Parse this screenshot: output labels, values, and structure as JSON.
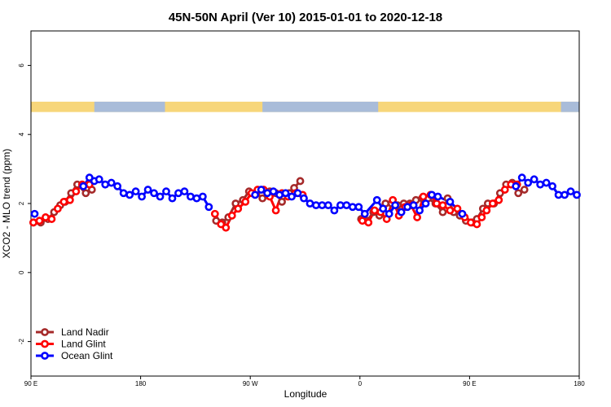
{
  "chart_data": {
    "type": "line",
    "title": "45N-50N April (Ver 10)   2015-01-01 to 2020-12-18",
    "xlabel": "Longitude",
    "ylabel": "XCO2 - MLO trend (ppm)",
    "xlim": [
      90,
      540
    ],
    "ylim": [
      -3,
      7
    ],
    "x_ticks": [
      {
        "value": 90,
        "label": "90 E"
      },
      {
        "value": 180,
        "label": "180"
      },
      {
        "value": 270,
        "label": "90 W"
      },
      {
        "value": 360,
        "label": "0"
      },
      {
        "value": 450,
        "label": "90 E"
      },
      {
        "value": 540,
        "label": "180"
      }
    ],
    "y_ticks": [
      {
        "value": -2,
        "label": "-2"
      },
      {
        "value": 0,
        "label": "0"
      },
      {
        "value": 2,
        "label": "2"
      },
      {
        "value": 4,
        "label": "4"
      },
      {
        "value": 6,
        "label": "6"
      }
    ],
    "map_strip": {
      "y_range": [
        4.65,
        4.95
      ],
      "land_color": "#f7d67a",
      "ocean_color": "#a9bcd9",
      "ocean_segments": [
        [
          142,
          200
        ],
        [
          280,
          375
        ],
        [
          525,
          540
        ]
      ]
    },
    "legend": {
      "position": "bottom-left"
    },
    "series": [
      {
        "name": "Land Nadir",
        "color": "#a52a2a",
        "points": [
          [
            92,
            1.45
          ],
          [
            98,
            1.45
          ],
          [
            104,
            1.55
          ],
          [
            109,
            1.75
          ],
          [
            114,
            1.95
          ],
          [
            118,
            2.05
          ],
          [
            123,
            2.3
          ],
          [
            128,
            2.55
          ],
          [
            135,
            2.3
          ],
          [
            140,
            2.4
          ],
          [
            242,
            1.5
          ],
          [
            247,
            1.45
          ],
          [
            252,
            1.6
          ],
          [
            258,
            2.0
          ],
          [
            264,
            2.1
          ],
          [
            269,
            2.35
          ],
          [
            275,
            2.3
          ],
          [
            280,
            2.15
          ],
          [
            286,
            2.35
          ],
          [
            291,
            2.3
          ],
          [
            296,
            2.05
          ],
          [
            302,
            2.3
          ],
          [
            306,
            2.45
          ],
          [
            311,
            2.65
          ],
          [
            361,
            1.55
          ],
          [
            366,
            1.5
          ],
          [
            371,
            1.75
          ],
          [
            376,
            1.65
          ],
          [
            381,
            2.0
          ],
          [
            386,
            2.0
          ],
          [
            391,
            1.95
          ],
          [
            396,
            2.0
          ],
          [
            401,
            2.0
          ],
          [
            406,
            2.1
          ],
          [
            411,
            2.15
          ],
          [
            416,
            2.15
          ],
          [
            422,
            2.0
          ],
          [
            428,
            1.75
          ],
          [
            432,
            2.15
          ],
          [
            437,
            1.75
          ],
          [
            442,
            1.65
          ],
          [
            447,
            1.5
          ],
          [
            452,
            1.45
          ],
          [
            456,
            1.55
          ],
          [
            461,
            1.85
          ],
          [
            465,
            2.0
          ],
          [
            470,
            2.0
          ],
          [
            475,
            2.3
          ],
          [
            480,
            2.55
          ],
          [
            485,
            2.6
          ],
          [
            490,
            2.3
          ],
          [
            495,
            2.4
          ]
        ]
      },
      {
        "name": "Land Glint",
        "color": "#ff0000",
        "points": [
          [
            92,
            1.45
          ],
          [
            97,
            1.5
          ],
          [
            102,
            1.6
          ],
          [
            107,
            1.55
          ],
          [
            112,
            1.85
          ],
          [
            117,
            2.05
          ],
          [
            122,
            2.1
          ],
          [
            127,
            2.35
          ],
          [
            132,
            2.55
          ],
          [
            138,
            2.55
          ],
          [
            241,
            1.7
          ],
          [
            246,
            1.4
          ],
          [
            250,
            1.3
          ],
          [
            255,
            1.65
          ],
          [
            260,
            1.85
          ],
          [
            266,
            2.05
          ],
          [
            271,
            2.3
          ],
          [
            276,
            2.4
          ],
          [
            281,
            2.4
          ],
          [
            286,
            2.2
          ],
          [
            291,
            1.8
          ],
          [
            296,
            2.3
          ],
          [
            301,
            2.2
          ],
          [
            307,
            2.3
          ],
          [
            313,
            2.25
          ],
          [
            362,
            1.5
          ],
          [
            367,
            1.45
          ],
          [
            372,
            1.8
          ],
          [
            377,
            1.75
          ],
          [
            382,
            1.55
          ],
          [
            387,
            2.1
          ],
          [
            392,
            1.65
          ],
          [
            397,
            1.9
          ],
          [
            402,
            1.95
          ],
          [
            407,
            1.6
          ],
          [
            412,
            2.2
          ],
          [
            418,
            2.25
          ],
          [
            423,
            2.0
          ],
          [
            428,
            1.95
          ],
          [
            434,
            1.8
          ],
          [
            440,
            1.85
          ],
          [
            446,
            1.6
          ],
          [
            451,
            1.45
          ],
          [
            456,
            1.4
          ],
          [
            460,
            1.6
          ],
          [
            464,
            1.8
          ],
          [
            469,
            2.0
          ],
          [
            474,
            2.1
          ],
          [
            479,
            2.4
          ],
          [
            484,
            2.55
          ],
          [
            489,
            2.55
          ]
        ]
      },
      {
        "name": "Ocean Glint",
        "color": "#0000ff",
        "points": [
          [
            93,
            1.7
          ],
          [
            133,
            2.5
          ],
          [
            138,
            2.75
          ],
          [
            142,
            2.65
          ],
          [
            146,
            2.7
          ],
          [
            151,
            2.55
          ],
          [
            156,
            2.6
          ],
          [
            161,
            2.5
          ],
          [
            166,
            2.3
          ],
          [
            171,
            2.25
          ],
          [
            176,
            2.35
          ],
          [
            181,
            2.2
          ],
          [
            186,
            2.4
          ],
          [
            191,
            2.3
          ],
          [
            196,
            2.2
          ],
          [
            201,
            2.35
          ],
          [
            206,
            2.15
          ],
          [
            211,
            2.3
          ],
          [
            216,
            2.35
          ],
          [
            221,
            2.2
          ],
          [
            226,
            2.15
          ],
          [
            231,
            2.2
          ],
          [
            236,
            1.9
          ],
          [
            274,
            2.25
          ],
          [
            279,
            2.4
          ],
          [
            284,
            2.3
          ],
          [
            289,
            2.35
          ],
          [
            294,
            2.25
          ],
          [
            299,
            2.3
          ],
          [
            304,
            2.2
          ],
          [
            309,
            2.3
          ],
          [
            314,
            2.15
          ],
          [
            319,
            2.0
          ],
          [
            324,
            1.95
          ],
          [
            329,
            1.95
          ],
          [
            334,
            1.95
          ],
          [
            339,
            1.8
          ],
          [
            344,
            1.95
          ],
          [
            349,
            1.95
          ],
          [
            354,
            1.9
          ],
          [
            359,
            1.9
          ],
          [
            364,
            1.7
          ],
          [
            374,
            2.1
          ],
          [
            379,
            1.85
          ],
          [
            384,
            1.7
          ],
          [
            389,
            1.95
          ],
          [
            394,
            1.75
          ],
          [
            399,
            1.9
          ],
          [
            404,
            1.95
          ],
          [
            409,
            1.8
          ],
          [
            414,
            2.0
          ],
          [
            419,
            2.25
          ],
          [
            424,
            2.2
          ],
          [
            434,
            2.05
          ],
          [
            444,
            1.7
          ],
          [
            488,
            2.5
          ],
          [
            493,
            2.75
          ],
          [
            498,
            2.6
          ],
          [
            503,
            2.7
          ],
          [
            508,
            2.55
          ],
          [
            513,
            2.6
          ],
          [
            518,
            2.5
          ],
          [
            523,
            2.25
          ],
          [
            528,
            2.25
          ],
          [
            533,
            2.35
          ],
          [
            538,
            2.25
          ]
        ]
      }
    ]
  }
}
